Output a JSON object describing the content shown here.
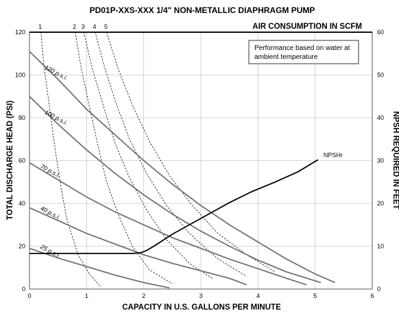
{
  "chart_data": {
    "type": "line",
    "title": "PD01P-XXS-XXX  1/4\" NON-METALLIC DIAPHRAGM PUMP",
    "xlabel": "CAPACITY IN U.S. GALLONS PER MINUTE",
    "ylabel": "TOTAL DISCHARGE HEAD (PSI)",
    "y2label": "NPSH REQUIRED IN FEET",
    "top_label": "AIR CONSUMPTION IN SCFM",
    "note_line1": "Performance based on water at",
    "note_line2": "ambient temperature",
    "xlim": [
      0,
      6
    ],
    "ylim": [
      0,
      120
    ],
    "y2lim": [
      0,
      60
    ],
    "grid": true,
    "x_ticks": [
      0,
      1,
      2,
      3,
      4,
      5,
      6
    ],
    "y_ticks": [
      0,
      20,
      40,
      60,
      80,
      100,
      120
    ],
    "y2_ticks": [
      0,
      10,
      20,
      30,
      40,
      50,
      60
    ],
    "pressure_series": [
      {
        "name": "120 p.s.i.",
        "x": [
          0,
          0.5,
          1,
          1.5,
          2,
          2.5,
          3,
          3.5,
          4,
          4.5,
          5,
          5.35
        ],
        "y": [
          111,
          98,
          84,
          72,
          60,
          49,
          39,
          30,
          22,
          14,
          7,
          3
        ]
      },
      {
        "name": "100 p.s.i.",
        "x": [
          0,
          0.5,
          1,
          1.5,
          2,
          2.5,
          3,
          3.5,
          4,
          4.5,
          5.1
        ],
        "y": [
          90,
          77,
          65,
          54,
          44,
          35,
          27,
          20,
          13.5,
          8,
          3
        ]
      },
      {
        "name": "70 p.s.i.",
        "x": [
          0,
          0.5,
          1,
          1.5,
          2,
          2.5,
          3,
          3.5,
          4,
          4.5,
          4.85
        ],
        "y": [
          59,
          51,
          43,
          36,
          30,
          24,
          19,
          14,
          9.5,
          5,
          2
        ]
      },
      {
        "name": "40 p.s.i.",
        "x": [
          0,
          0.5,
          1,
          1.5,
          2,
          2.5,
          3,
          3.5,
          3.8
        ],
        "y": [
          38,
          32,
          26,
          21,
          16,
          12,
          8.5,
          5,
          2
        ]
      },
      {
        "name": "25 p.s.i.",
        "x": [
          0,
          0.5,
          1,
          1.5,
          2,
          2.45
        ],
        "y": [
          19,
          14.5,
          10.5,
          6.5,
          3,
          0.5
        ]
      }
    ],
    "air_series": [
      {
        "name": "1",
        "x": [
          0.2,
          0.25,
          0.35,
          0.45,
          0.55,
          0.65,
          0.85,
          1.05,
          1.25
        ],
        "y": [
          120,
          105,
          85,
          65,
          48,
          33,
          16,
          7,
          1
        ]
      },
      {
        "name": "2",
        "x": [
          0.8,
          0.9,
          1.05,
          1.2,
          1.35,
          1.55,
          1.8,
          2.1,
          2.5
        ],
        "y": [
          120,
          104,
          85,
          67,
          50,
          35,
          20,
          9,
          2.5
        ]
      },
      {
        "name": "3",
        "x": [
          0.95,
          1.1,
          1.3,
          1.5,
          1.75,
          2.05,
          2.4,
          2.8,
          3.2
        ],
        "y": [
          120,
          103,
          85,
          68,
          52,
          37,
          23,
          12,
          5
        ]
      },
      {
        "name": "4",
        "x": [
          1.15,
          1.3,
          1.5,
          1.75,
          2.05,
          2.4,
          2.8,
          3.3,
          3.8
        ],
        "y": [
          120,
          105,
          88,
          70,
          54,
          39,
          26,
          14,
          6
        ]
      },
      {
        "name": "5",
        "x": [
          1.35,
          1.55,
          1.8,
          2.1,
          2.45,
          2.85,
          3.3,
          3.8,
          4.3
        ],
        "y": [
          120,
          103,
          86,
          69,
          53,
          39,
          26,
          16,
          8
        ]
      }
    ],
    "npsh_series": {
      "name": "NPSHr",
      "x": [
        0,
        0.5,
        1,
        1.5,
        1.8,
        1.95,
        2.05,
        2.2,
        2.5,
        3,
        3.5,
        3.9,
        4.3,
        4.7,
        5.05
      ],
      "y_feet": [
        8.3,
        8.3,
        8.3,
        8.3,
        8.3,
        8.5,
        9,
        10.2,
        12.8,
        16.5,
        20.2,
        22.8,
        25,
        27.4,
        30.2
      ]
    }
  }
}
